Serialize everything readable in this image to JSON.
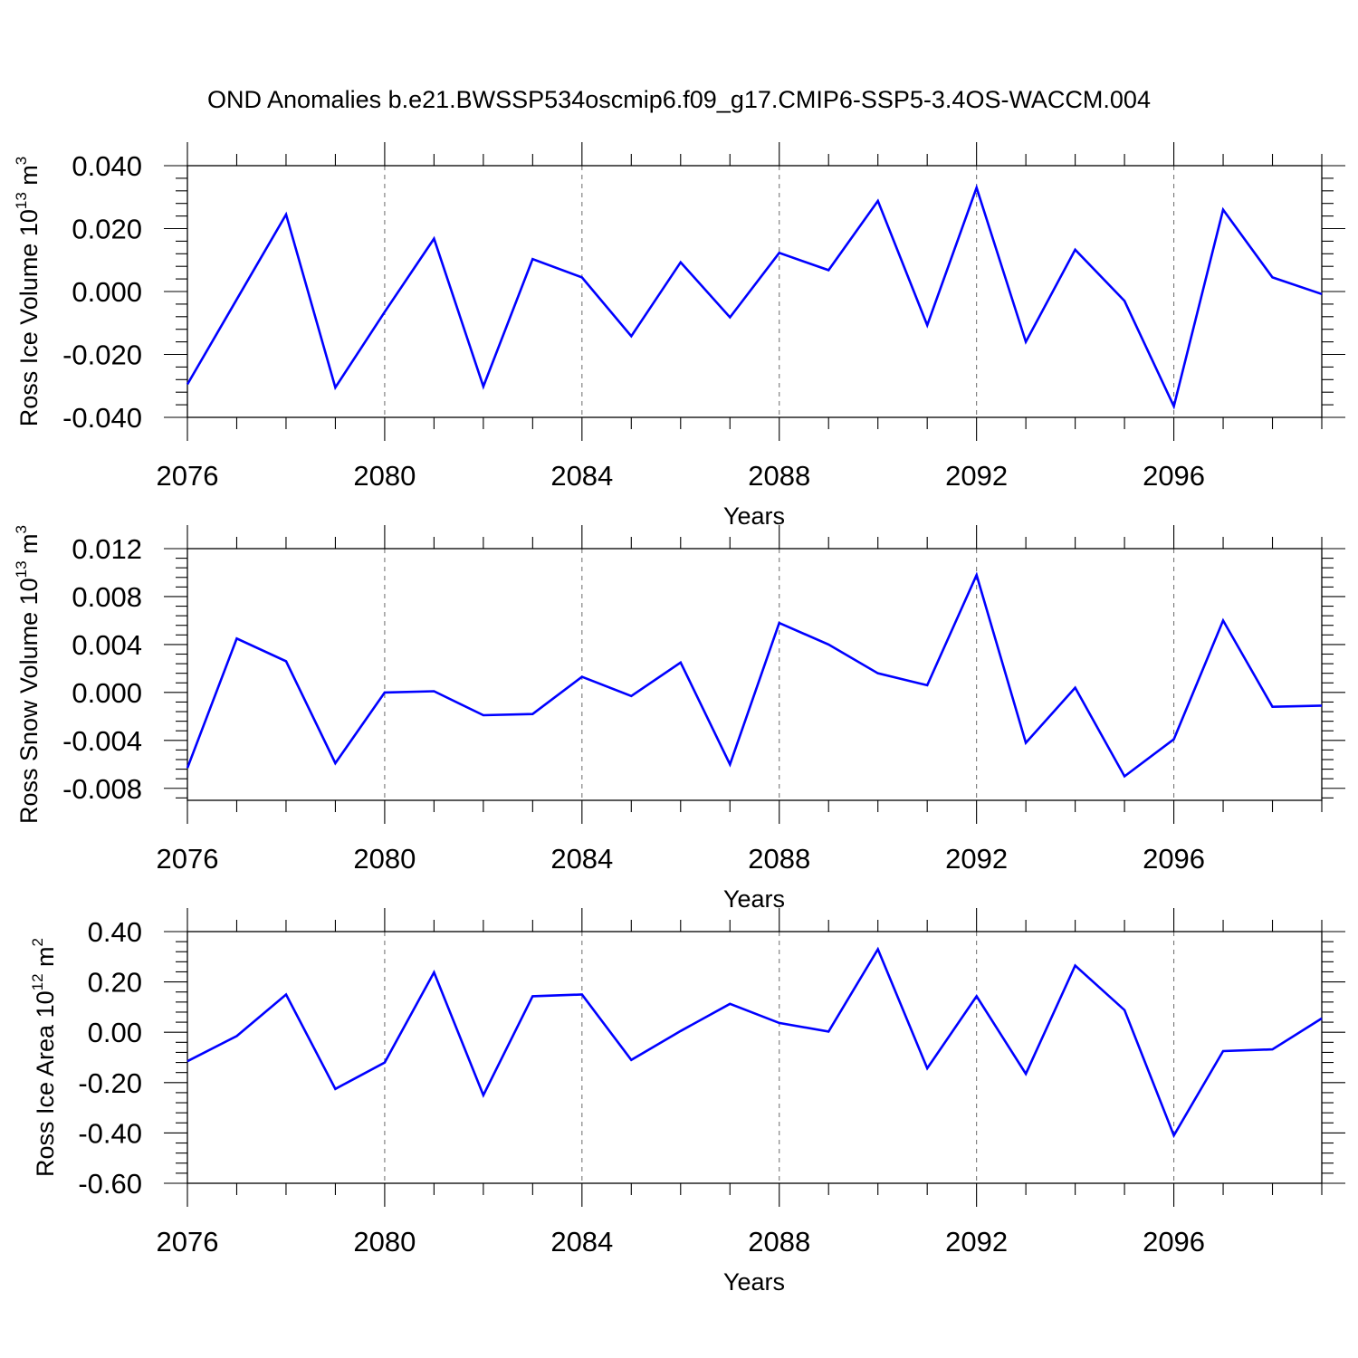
{
  "title": "OND Anomalies b.e21.BWSSP534oscmip6.f09_g17.CMIP6-SSP5-3.4OS-WACCM.004",
  "chart_data": [
    {
      "type": "line",
      "ylabel": "Ross Ice Volume 10",
      "ylabel_exp": "13",
      "ylabel_unit": " m",
      "ylabel_unit_exp": "3",
      "xlabel": "Years",
      "xlim": [
        2076,
        2099
      ],
      "ylim": [
        -0.04,
        0.04
      ],
      "xticks": [
        "2076",
        "2080",
        "2084",
        "2088",
        "2092",
        "2096"
      ],
      "yticks": [
        "0.040",
        "0.020",
        "0.000",
        "-0.020",
        "-0.040"
      ],
      "x": [
        2076,
        2077,
        2078,
        2079,
        2080,
        2081,
        2082,
        2083,
        2084,
        2085,
        2086,
        2087,
        2088,
        2089,
        2090,
        2091,
        2092,
        2093,
        2094,
        2095,
        2096,
        2097,
        2098,
        2099
      ],
      "series": [
        {
          "values": [
            -0.0295,
            -0.0025,
            0.0245,
            -0.0305,
            -0.0065,
            0.0168,
            -0.0302,
            0.0103,
            0.0045,
            -0.0142,
            0.0093,
            -0.0082,
            0.0123,
            0.0068,
            0.0288,
            -0.0107,
            0.033,
            -0.016,
            0.0133,
            -0.003,
            -0.0365,
            0.026,
            0.0045,
            -0.0008
          ],
          "color": "#0000ff"
        }
      ]
    },
    {
      "type": "line",
      "ylabel": "Ross Snow Volume 10",
      "ylabel_exp": "13",
      "ylabel_unit": " m",
      "ylabel_unit_exp": "3",
      "xlabel": "Years",
      "xlim": [
        2076,
        2099
      ],
      "ylim": [
        -0.009,
        0.012
      ],
      "xticks": [
        "2076",
        "2080",
        "2084",
        "2088",
        "2092",
        "2096"
      ],
      "yticks": [
        "0.012",
        "0.008",
        "0.004",
        "0.000",
        "-0.004",
        "-0.008"
      ],
      "x": [
        2076,
        2077,
        2078,
        2079,
        2080,
        2081,
        2082,
        2083,
        2084,
        2085,
        2086,
        2087,
        2088,
        2089,
        2090,
        2091,
        2092,
        2093,
        2094,
        2095,
        2096,
        2097,
        2098,
        2099
      ],
      "series": [
        {
          "values": [
            -0.0063,
            0.0045,
            0.0026,
            -0.0059,
            0.0,
            0.0001,
            -0.0019,
            -0.0018,
            0.0013,
            -0.0003,
            0.0025,
            -0.006,
            0.0058,
            0.004,
            0.0016,
            0.0006,
            0.0098,
            -0.0042,
            0.0004,
            -0.007,
            -0.0039,
            0.006,
            -0.0012,
            -0.0011
          ],
          "color": "#0000ff"
        }
      ]
    },
    {
      "type": "line",
      "ylabel": "Ross Ice Area 10",
      "ylabel_exp": "12",
      "ylabel_unit": " m",
      "ylabel_unit_exp": "2",
      "xlabel": "Years",
      "xlim": [
        2076,
        2099
      ],
      "ylim": [
        -0.6,
        0.4
      ],
      "xticks": [
        "2076",
        "2080",
        "2084",
        "2088",
        "2092",
        "2096"
      ],
      "yticks": [
        "0.40",
        "0.20",
        "0.00",
        "-0.20",
        "-0.40",
        "-0.60"
      ],
      "x": [
        2076,
        2077,
        2078,
        2079,
        2080,
        2081,
        2082,
        2083,
        2084,
        2085,
        2086,
        2087,
        2088,
        2089,
        2090,
        2091,
        2092,
        2093,
        2094,
        2095,
        2096,
        2097,
        2098,
        2099
      ],
      "series": [
        {
          "values": [
            -0.115,
            -0.015,
            0.15,
            -0.225,
            -0.12,
            0.238,
            -0.25,
            0.143,
            0.15,
            -0.11,
            0.005,
            0.113,
            0.037,
            0.003,
            0.33,
            -0.143,
            0.143,
            -0.165,
            0.265,
            0.088,
            -0.41,
            -0.075,
            -0.068,
            0.055
          ],
          "color": "#0000ff"
        }
      ]
    }
  ]
}
